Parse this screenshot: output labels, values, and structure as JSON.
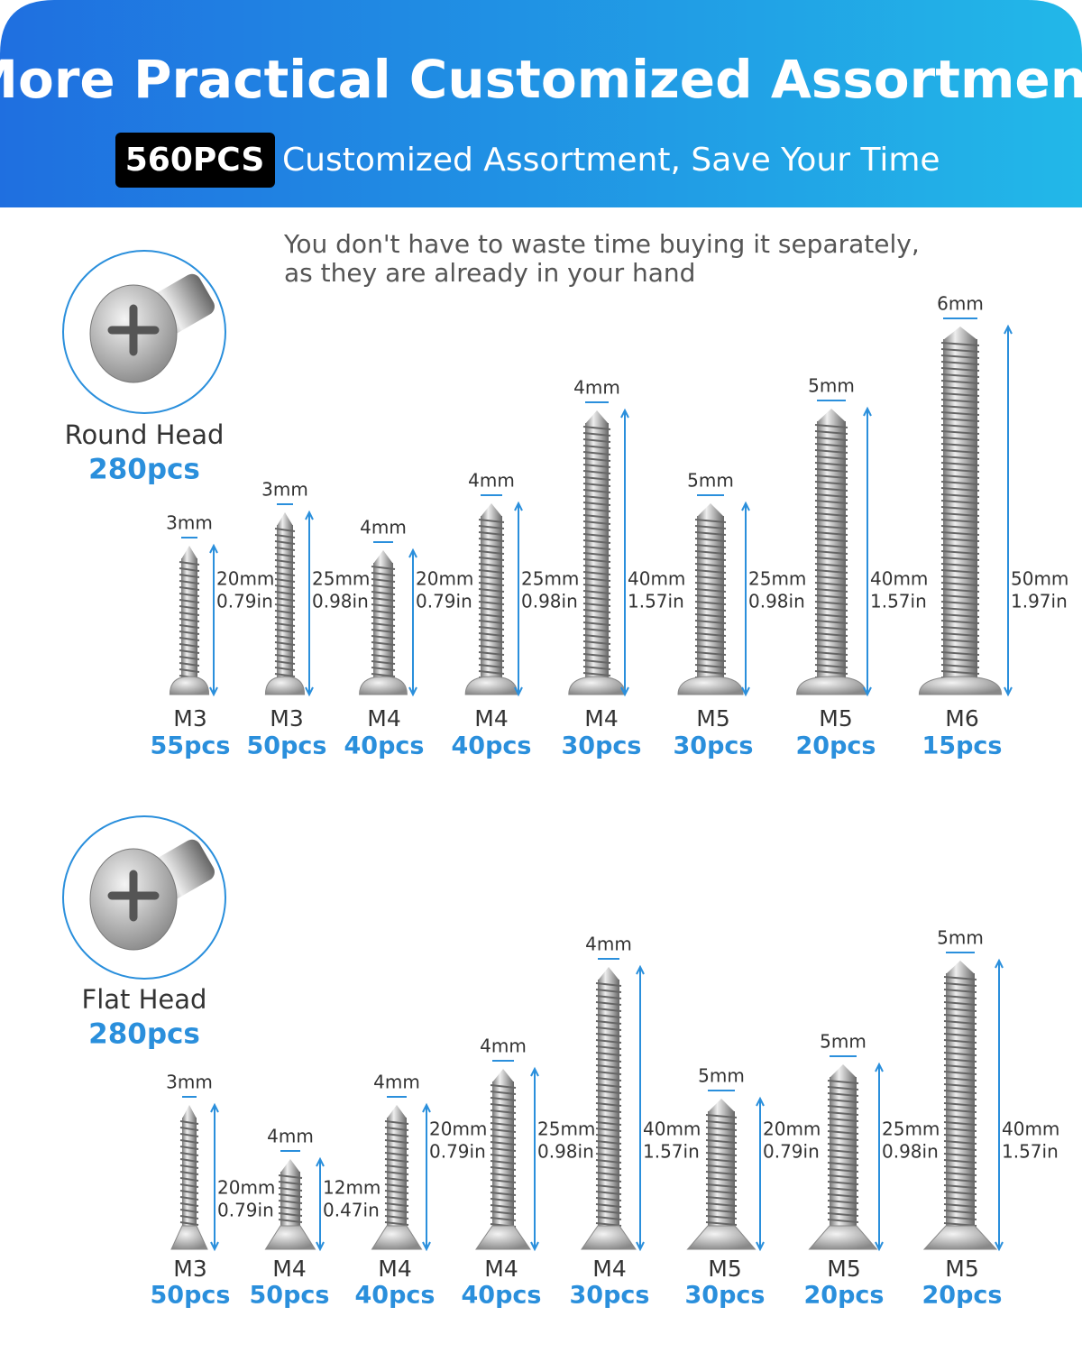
{
  "header": {
    "title": "More Practical Customized Assortment",
    "badge": "560PCS",
    "subtitle": "Customized Assortment, Save Your Time"
  },
  "intro": [
    "You don't have to waste time buying it separately,",
    "as they are already in your hand"
  ],
  "groups": [
    {
      "name": "Round Head",
      "total": "280pcs",
      "screws": [
        {
          "diameter": "3mm",
          "length_mm": "20mm",
          "length_in": "0.79in",
          "size": "M3",
          "count": "55pcs"
        },
        {
          "diameter": "3mm",
          "length_mm": "25mm",
          "length_in": "0.98in",
          "size": "M3",
          "count": "50pcs"
        },
        {
          "diameter": "4mm",
          "length_mm": "20mm",
          "length_in": "0.79in",
          "size": "M4",
          "count": "40pcs"
        },
        {
          "diameter": "4mm",
          "length_mm": "25mm",
          "length_in": "0.98in",
          "size": "M4",
          "count": "40pcs"
        },
        {
          "diameter": "4mm",
          "length_mm": "40mm",
          "length_in": "1.57in",
          "size": "M4",
          "count": "30pcs"
        },
        {
          "diameter": "5mm",
          "length_mm": "25mm",
          "length_in": "0.98in",
          "size": "M5",
          "count": "30pcs"
        },
        {
          "diameter": "5mm",
          "length_mm": "40mm",
          "length_in": "1.57in",
          "size": "M5",
          "count": "20pcs"
        },
        {
          "diameter": "6mm",
          "length_mm": "50mm",
          "length_in": "1.97in",
          "size": "M6",
          "count": "15pcs"
        }
      ]
    },
    {
      "name": "Flat Head",
      "total": "280pcs",
      "screws": [
        {
          "diameter": "3mm",
          "length_mm": "20mm",
          "length_in": "0.79in",
          "size": "M3",
          "count": "50pcs"
        },
        {
          "diameter": "4mm",
          "length_mm": "12mm",
          "length_in": "0.47in",
          "size": "M4",
          "count": "50pcs"
        },
        {
          "diameter": "4mm",
          "length_mm": "20mm",
          "length_in": "0.79in",
          "size": "M4",
          "count": "40pcs"
        },
        {
          "diameter": "4mm",
          "length_mm": "25mm",
          "length_in": "0.98in",
          "size": "M4",
          "count": "40pcs"
        },
        {
          "diameter": "4mm",
          "length_mm": "40mm",
          "length_in": "1.57in",
          "size": "M4",
          "count": "30pcs"
        },
        {
          "diameter": "5mm",
          "length_mm": "20mm",
          "length_in": "0.79in",
          "size": "M5",
          "count": "30pcs"
        },
        {
          "diameter": "5mm",
          "length_mm": "25mm",
          "length_in": "0.98in",
          "size": "M5",
          "count": "20pcs"
        },
        {
          "diameter": "5mm",
          "length_mm": "40mm",
          "length_in": "1.57in",
          "size": "M5",
          "count": "20pcs"
        }
      ]
    }
  ]
}
